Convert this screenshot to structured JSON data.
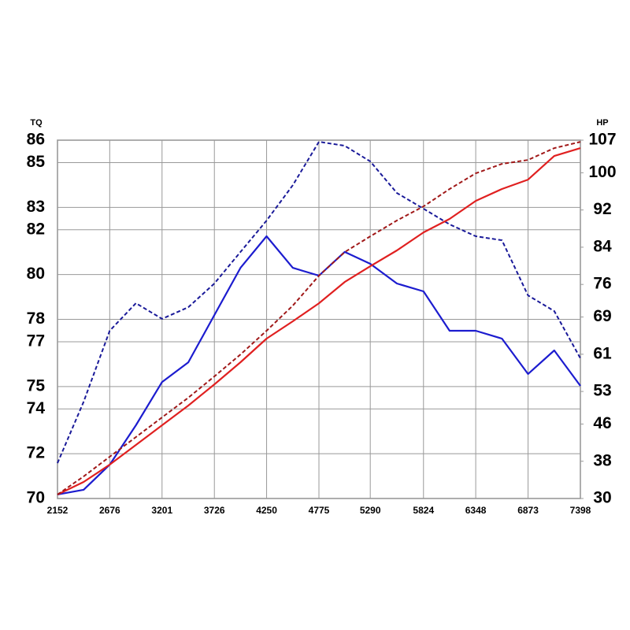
{
  "chart_data": {
    "type": "line",
    "y_label": "TQ",
    "y2_label": "HP",
    "x": [
      2152,
      2414,
      2676,
      2939,
      3201,
      3464,
      3726,
      3988,
      4250,
      4513,
      4775,
      5033,
      5290,
      5557,
      5824,
      6086,
      6348,
      6611,
      6873,
      7136,
      7398
    ],
    "xlim": [
      2152,
      7398
    ],
    "xticks": [
      2152,
      2676,
      3201,
      3726,
      4250,
      4775,
      5290,
      5824,
      6348,
      6873,
      7398
    ],
    "ylim": [
      70,
      86
    ],
    "yticks": [
      70,
      72,
      74,
      75,
      77,
      78,
      80,
      82,
      83,
      85,
      86
    ],
    "y2lim": [
      30,
      107
    ],
    "y2ticks": [
      30,
      38,
      46,
      53,
      61,
      69,
      76,
      84,
      92,
      100,
      107
    ],
    "grid": true,
    "series": [
      {
        "color": "#1c1ccf",
        "style": "solid",
        "values": [
          70.18,
          70.39,
          71.51,
          73.27,
          75.2,
          76.08,
          78.19,
          80.3,
          81.71,
          80.3,
          79.95,
          81.01,
          80.48,
          79.6,
          79.25,
          77.49,
          77.49,
          77.14,
          75.56,
          76.61,
          75.03
        ]
      },
      {
        "color": "#1a1a99",
        "style": "dashed",
        "values": [
          71.58,
          74.32,
          77.49,
          78.72,
          78.02,
          78.54,
          79.6,
          81.01,
          82.41,
          83.99,
          85.93,
          85.75,
          85.05,
          83.64,
          82.94,
          82.24,
          81.71,
          81.53,
          79.07,
          78.37,
          76.26
        ]
      },
      {
        "color": "#e02020",
        "style": "solid",
        "axis": "y2",
        "values": [
          30.85,
          33.55,
          37.28,
          41.51,
          45.74,
          49.97,
          54.53,
          59.27,
          64.35,
          68.07,
          71.96,
          76.53,
          79.91,
          83.3,
          87.19,
          90.07,
          93.96,
          96.5,
          98.53,
          103.6,
          105.29
        ]
      },
      {
        "color": "#a01818",
        "style": "dashed",
        "axis": "y2",
        "values": [
          30.85,
          34.74,
          38.97,
          43.2,
          47.43,
          51.66,
          56.23,
          60.96,
          66.04,
          71.45,
          77.88,
          82.96,
          86.34,
          89.73,
          92.77,
          96.5,
          99.88,
          101.91,
          102.76,
          105.29,
          106.65
        ]
      }
    ]
  }
}
